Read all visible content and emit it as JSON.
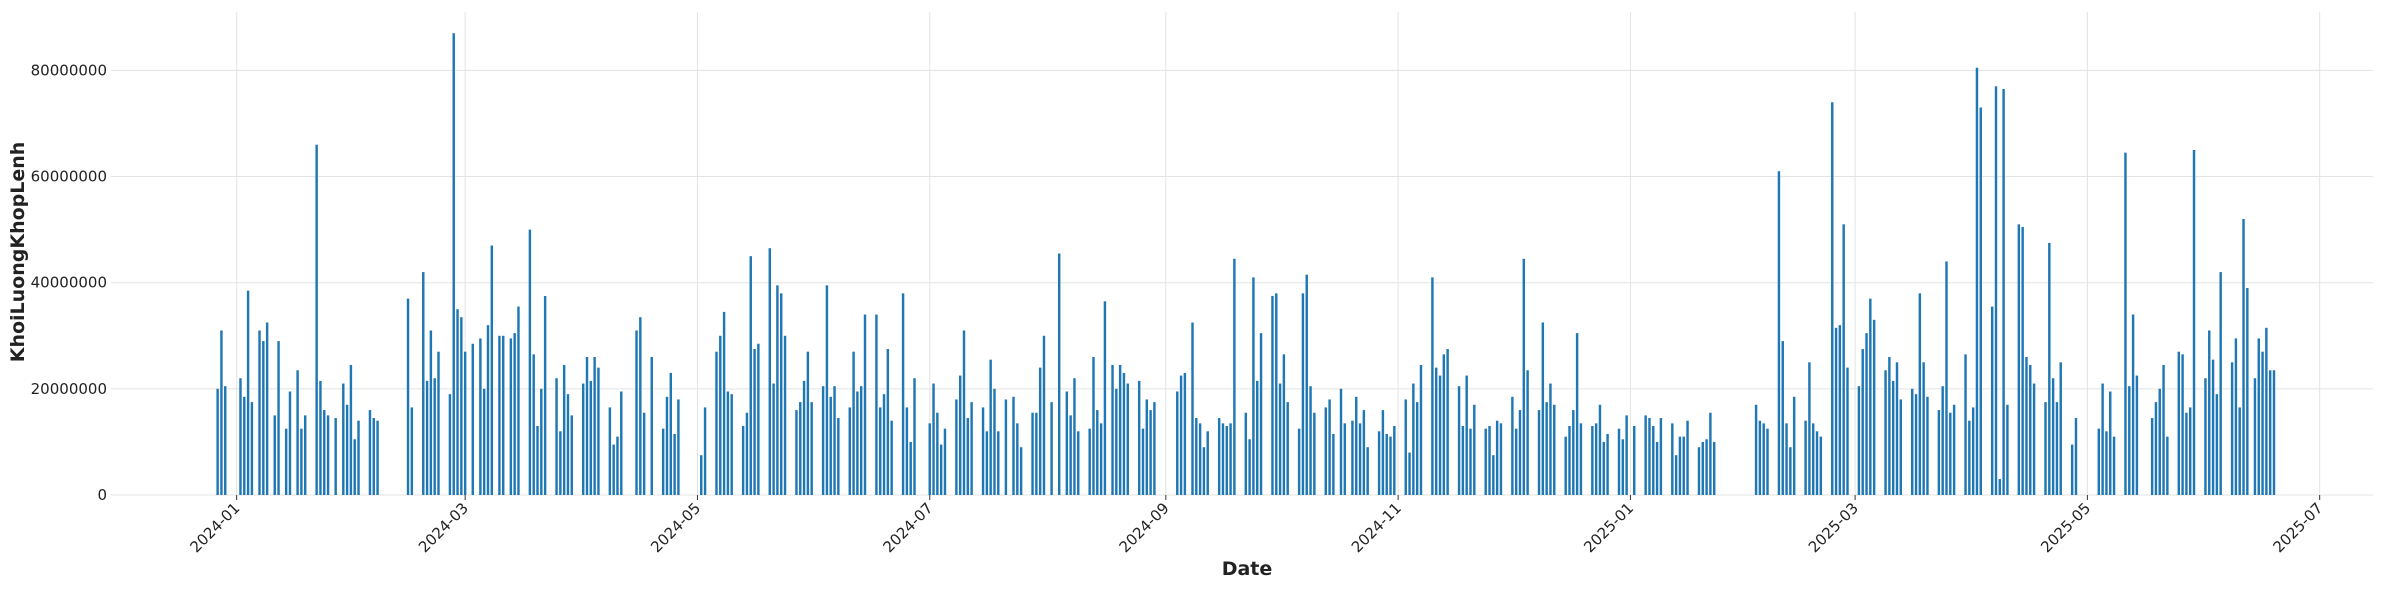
{
  "chart_data": {
    "type": "bar",
    "xlabel": "Date",
    "ylabel": "KhoiLuongKhopLenh",
    "color": "#1f77b4",
    "grid": true,
    "xlim": [
      -33,
      561
    ],
    "xticks": [
      {
        "value": 0,
        "label": "2024-01"
      },
      {
        "value": 60,
        "label": "2024-03"
      },
      {
        "value": 121,
        "label": "2024-05"
      },
      {
        "value": 182,
        "label": "2024-07"
      },
      {
        "value": 244,
        "label": "2024-09"
      },
      {
        "value": 305,
        "label": "2024-11"
      },
      {
        "value": 366,
        "label": "2025-01"
      },
      {
        "value": 425,
        "label": "2025-03"
      },
      {
        "value": 486,
        "label": "2025-05"
      },
      {
        "value": 547,
        "label": "2025-07"
      }
    ],
    "ylim": [
      0,
      91000000
    ],
    "yticks": [
      0,
      20000000,
      40000000,
      60000000,
      80000000
    ],
    "x": [
      -5,
      -4,
      -3,
      1,
      2,
      3,
      4,
      6,
      7,
      8,
      10,
      11,
      13,
      14,
      16,
      17,
      18,
      21,
      22,
      23,
      24,
      26,
      28,
      29,
      30,
      31,
      32,
      35,
      36,
      37,
      45,
      46,
      49,
      50,
      51,
      52,
      53,
      56,
      57,
      58,
      59,
      60,
      62,
      64,
      65,
      66,
      67,
      69,
      70,
      72,
      73,
      74,
      77,
      78,
      79,
      80,
      81,
      84,
      85,
      86,
      87,
      88,
      91,
      92,
      93,
      94,
      95,
      98,
      99,
      100,
      101,
      105,
      106,
      107,
      109,
      112,
      113,
      114,
      115,
      116,
      122,
      123,
      126,
      127,
      128,
      129,
      130,
      133,
      134,
      135,
      136,
      137,
      140,
      141,
      142,
      143,
      144,
      147,
      148,
      149,
      150,
      151,
      154,
      155,
      156,
      157,
      158,
      161,
      162,
      163,
      164,
      165,
      168,
      169,
      170,
      171,
      172,
      175,
      176,
      177,
      178,
      182,
      183,
      184,
      185,
      186,
      189,
      190,
      191,
      192,
      193,
      196,
      197,
      198,
      199,
      200,
      202,
      204,
      205,
      206,
      209,
      210,
      211,
      212,
      214,
      216,
      218,
      219,
      220,
      221,
      224,
      225,
      226,
      227,
      228,
      230,
      231,
      232,
      233,
      234,
      237,
      238,
      239,
      240,
      241,
      247,
      248,
      249,
      251,
      252,
      253,
      254,
      255,
      258,
      259,
      260,
      261,
      262,
      265,
      266,
      267,
      268,
      269,
      272,
      273,
      274,
      275,
      276,
      279,
      280,
      281,
      282,
      283,
      286,
      287,
      288,
      290,
      291,
      293,
      294,
      295,
      296,
      297,
      300,
      301,
      302,
      303,
      304,
      307,
      308,
      309,
      310,
      311,
      314,
      315,
      316,
      317,
      318,
      321,
      322,
      323,
      324,
      325,
      328,
      329,
      330,
      331,
      332,
      335,
      336,
      337,
      338,
      339,
      342,
      343,
      344,
      345,
      346,
      349,
      350,
      351,
      352,
      353,
      356,
      357,
      358,
      359,
      360,
      363,
      364,
      365,
      367,
      370,
      371,
      372,
      373,
      374,
      377,
      378,
      379,
      380,
      381,
      384,
      385,
      386,
      387,
      388,
      399,
      400,
      401,
      402,
      405,
      406,
      407,
      408,
      409,
      412,
      413,
      414,
      415,
      416,
      419,
      420,
      421,
      422,
      423,
      426,
      427,
      428,
      429,
      430,
      433,
      434,
      435,
      436,
      437,
      440,
      441,
      442,
      443,
      444,
      447,
      448,
      449,
      450,
      451,
      454,
      455,
      456,
      457,
      458,
      461,
      462,
      463,
      464,
      465,
      468,
      469,
      470,
      471,
      472,
      475,
      476,
      477,
      478,
      479,
      482,
      483,
      489,
      490,
      491,
      492,
      493,
      496,
      497,
      498,
      499,
      503,
      504,
      505,
      506,
      507,
      510,
      511,
      512,
      513,
      514,
      517,
      518,
      519,
      520,
      521,
      524,
      525,
      526,
      527,
      528,
      530,
      531,
      532,
      533,
      534,
      535
    ],
    "values": [
      20000000,
      31000000,
      20500000,
      22000000,
      18500000,
      38500000,
      17500000,
      31000000,
      29000000,
      32500000,
      15000000,
      29000000,
      12500000,
      19500000,
      23500000,
      12500000,
      15000000,
      66000000,
      21500000,
      16000000,
      15000000,
      14500000,
      21000000,
      17000000,
      24500000,
      10500000,
      14000000,
      16000000,
      14500000,
      14000000,
      37000000,
      16500000,
      42000000,
      21500000,
      31000000,
      22000000,
      27000000,
      19000000,
      87000000,
      35000000,
      33500000,
      27000000,
      28500000,
      29500000,
      20000000,
      32000000,
      47000000,
      30000000,
      30000000,
      29500000,
      30500000,
      35500000,
      50000000,
      26500000,
      13000000,
      20000000,
      37500000,
      22000000,
      12000000,
      24500000,
      19000000,
      15000000,
      21000000,
      26000000,
      21500000,
      26000000,
      24000000,
      16500000,
      9500000,
      11000000,
      19500000,
      31000000,
      33500000,
      15500000,
      26000000,
      12500000,
      18500000,
      23000000,
      11500000,
      18000000,
      7500000,
      16500000,
      27000000,
      30000000,
      34500000,
      19500000,
      19000000,
      13000000,
      15500000,
      45000000,
      27500000,
      28500000,
      46500000,
      21000000,
      39500000,
      38000000,
      30000000,
      16000000,
      17500000,
      21500000,
      27000000,
      17500000,
      20500000,
      39500000,
      18500000,
      20500000,
      14500000,
      16500000,
      27000000,
      19500000,
      20500000,
      34000000,
      34000000,
      16500000,
      19000000,
      27500000,
      14000000,
      38000000,
      16500000,
      10000000,
      22000000,
      13500000,
      21000000,
      15500000,
      9500000,
      12500000,
      18000000,
      22500000,
      31000000,
      14500000,
      17500000,
      16500000,
      12000000,
      25500000,
      20000000,
      12000000,
      18000000,
      18500000,
      13500000,
      9000000,
      15500000,
      15500000,
      24000000,
      30000000,
      17500000,
      45500000,
      19500000,
      15000000,
      22000000,
      12000000,
      12500000,
      26000000,
      16000000,
      13500000,
      36500000,
      24500000,
      20000000,
      24500000,
      23000000,
      21000000,
      21500000,
      12500000,
      18000000,
      16000000,
      17500000,
      19500000,
      22500000,
      23000000,
      32500000,
      14500000,
      13500000,
      9000000,
      12000000,
      14500000,
      13500000,
      13000000,
      13500000,
      44500000,
      15500000,
      10500000,
      41000000,
      21500000,
      30500000,
      37500000,
      38000000,
      21000000,
      26500000,
      17500000,
      12500000,
      38000000,
      41500000,
      20500000,
      15500000,
      16500000,
      18000000,
      11500000,
      20000000,
      13500000,
      14000000,
      18500000,
      13500000,
      16000000,
      9000000,
      12000000,
      16000000,
      11500000,
      11000000,
      13000000,
      18000000,
      8000000,
      21000000,
      17500000,
      24500000,
      41000000,
      24000000,
      22500000,
      26500000,
      27500000,
      20500000,
      13000000,
      22500000,
      12500000,
      17000000,
      12500000,
      13000000,
      7500000,
      14000000,
      13500000,
      18500000,
      12500000,
      16000000,
      44500000,
      23500000,
      16000000,
      32500000,
      17500000,
      21000000,
      17000000,
      11000000,
      13000000,
      16000000,
      30500000,
      13500000,
      13000000,
      13500000,
      17000000,
      10000000,
      11500000,
      12500000,
      10500000,
      15000000,
      13000000,
      15000000,
      14500000,
      13000000,
      10000000,
      14500000,
      13500000,
      7500000,
      11000000,
      11000000,
      14000000,
      9000000,
      10000000,
      10500000,
      15500000,
      10000000,
      17000000,
      14000000,
      13500000,
      12500000,
      61000000,
      29000000,
      13500000,
      9000000,
      18500000,
      14000000,
      25000000,
      13500000,
      12000000,
      11000000,
      74000000,
      31500000,
      32000000,
      51000000,
      24000000,
      20500000,
      27500000,
      30500000,
      37000000,
      33000000,
      23500000,
      26000000,
      21500000,
      25000000,
      18000000,
      20000000,
      19000000,
      38000000,
      25000000,
      18500000,
      16000000,
      20500000,
      44000000,
      15500000,
      17000000,
      26500000,
      14000000,
      16500000,
      80500000,
      73000000,
      35500000,
      77000000,
      3000000,
      76500000,
      17000000,
      51000000,
      50500000,
      26000000,
      24500000,
      21000000,
      17500000,
      47500000,
      22000000,
      17500000,
      25000000,
      9500000,
      14500000,
      12500000,
      21000000,
      12000000,
      19500000,
      11000000,
      64500000,
      20500000,
      34000000,
      22500000,
      14500000,
      17500000,
      20000000,
      24500000,
      11000000,
      27000000,
      26500000,
      15500000,
      16500000,
      65000000,
      22000000,
      31000000,
      25500000,
      19000000,
      42000000,
      25000000,
      29500000,
      16500000,
      52000000,
      39000000,
      22000000,
      29500000,
      27000000,
      31500000,
      23500000,
      23500000
    ]
  }
}
